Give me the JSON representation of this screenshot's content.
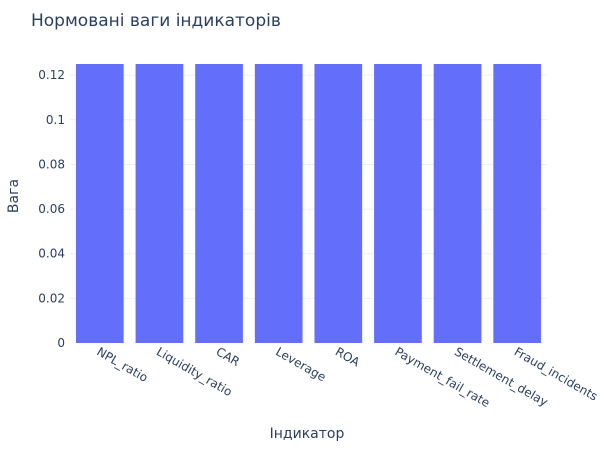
{
  "chart_data": {
    "type": "bar",
    "title": "Нормовані ваги індикаторів",
    "xlabel": "Індикатор",
    "ylabel": "Вага",
    "categories": [
      "NPL_ratio",
      "Liquidity_ratio",
      "CAR",
      "Leverage",
      "ROA",
      "Payment_fail_rate",
      "Settlement_delay",
      "Fraud_incidents"
    ],
    "values": [
      0.125,
      0.125,
      0.125,
      0.125,
      0.125,
      0.125,
      0.125,
      0.125
    ],
    "ylim": [
      0,
      0.125
    ],
    "yticks": [
      0,
      0.02,
      0.04,
      0.06,
      0.08,
      0.1,
      0.12
    ],
    "ytick_labels": [
      "0",
      "0.02",
      "0.04",
      "0.06",
      "0.08",
      "0.1",
      "0.12"
    ],
    "grid": true,
    "legend": "none",
    "colors": {
      "bar": "#636efa",
      "grid": "#ebf0f8",
      "text": "#2a3f5f",
      "background": "#ffffff"
    }
  }
}
